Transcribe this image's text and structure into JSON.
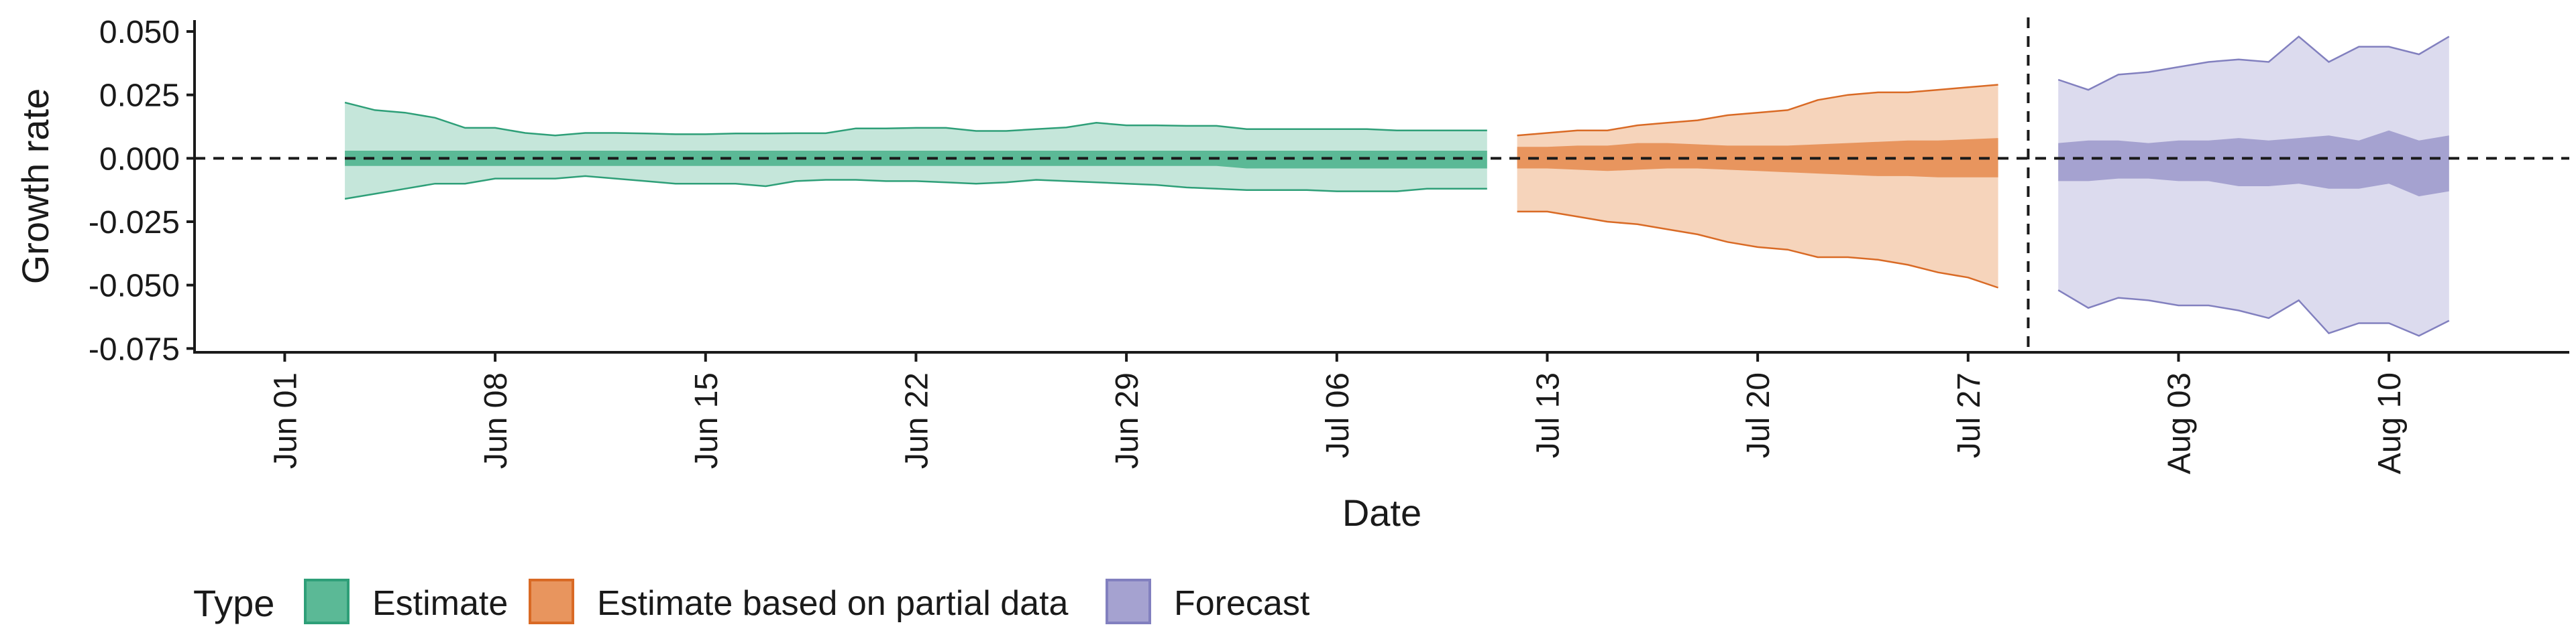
{
  "chart_data": {
    "type": "area",
    "title": "",
    "xlabel": "Date",
    "ylabel": "Growth rate",
    "ylim": [
      -0.075,
      0.05
    ],
    "xlim": [
      "2021-05-29",
      "2021-08-16"
    ],
    "grid": false,
    "legend_position": "bottom-left",
    "y_ticks": [
      "0.050",
      "0.025",
      "0.000",
      "-0.025",
      "-0.050",
      "-0.075"
    ],
    "x_ticks": [
      "Jun 01",
      "Jun 08",
      "Jun 15",
      "Jun 22",
      "Jun 29",
      "Jul 06",
      "Jul 13",
      "Jul 20",
      "Jul 27",
      "Aug 03",
      "Aug 10"
    ],
    "x_tick_dates": [
      "2021-06-01",
      "2021-06-08",
      "2021-06-15",
      "2021-06-22",
      "2021-06-29",
      "2021-07-06",
      "2021-07-13",
      "2021-07-20",
      "2021-07-27",
      "2021-08-03",
      "2021-08-10"
    ],
    "reference_lines": {
      "horizontal_y": 0,
      "vertical_date": "2021-07-29"
    },
    "legend": {
      "title": "Type",
      "entries": [
        "Estimate",
        "Estimate based on partial data",
        "Forecast"
      ]
    },
    "colors": {
      "Estimate": {
        "outer": "#c5e6da",
        "inner": "#5bb996",
        "line": "#2e9f78"
      },
      "Estimate based on partial data": {
        "outer": "#f6d4bb",
        "inner": "#e8955e",
        "line": "#d96a25"
      },
      "Forecast": {
        "outer": "#dcdbee",
        "inner": "#a5a2d0",
        "line": "#8280bf"
      }
    },
    "series": [
      {
        "name": "Estimate",
        "start_date": "2021-06-03",
        "dates_count": 39,
        "upper90": [
          0.022,
          0.019,
          0.018,
          0.016,
          0.012,
          0.012,
          0.01,
          0.009,
          0.01,
          0.01,
          0.0098,
          0.0095,
          0.0095,
          0.0098,
          0.0098,
          0.0099,
          0.0099,
          0.0118,
          0.0118,
          0.012,
          0.012,
          0.0108,
          0.0108,
          0.0115,
          0.0122,
          0.014,
          0.013,
          0.013,
          0.0128,
          0.0128,
          0.0115,
          0.0115,
          0.0115,
          0.0115,
          0.0115,
          0.011,
          0.011,
          0.011,
          0.011
        ],
        "lower90": [
          -0.016,
          -0.014,
          -0.012,
          -0.01,
          -0.01,
          -0.008,
          -0.008,
          -0.008,
          -0.007,
          -0.008,
          -0.009,
          -0.01,
          -0.01,
          -0.01,
          -0.011,
          -0.009,
          -0.0085,
          -0.0085,
          -0.009,
          -0.009,
          -0.0095,
          -0.01,
          -0.0095,
          -0.0085,
          -0.009,
          -0.0095,
          -0.01,
          -0.0105,
          -0.0115,
          -0.012,
          -0.0125,
          -0.0125,
          -0.0125,
          -0.013,
          -0.013,
          -0.013,
          -0.012,
          -0.012,
          -0.012
        ],
        "upper50": [
          0.003,
          0.003,
          0.003,
          0.003,
          0.003,
          0.003,
          0.003,
          0.003,
          0.003,
          0.003,
          0.003,
          0.003,
          0.003,
          0.003,
          0.003,
          0.003,
          0.003,
          0.003,
          0.003,
          0.003,
          0.003,
          0.003,
          0.003,
          0.003,
          0.003,
          0.003,
          0.003,
          0.003,
          0.003,
          0.003,
          0.003,
          0.003,
          0.003,
          0.003,
          0.003,
          0.003,
          0.003,
          0.003,
          0.003
        ],
        "lower50": [
          -0.003,
          -0.003,
          -0.003,
          -0.003,
          -0.003,
          -0.003,
          -0.003,
          -0.003,
          -0.003,
          -0.003,
          -0.003,
          -0.003,
          -0.003,
          -0.003,
          -0.003,
          -0.003,
          -0.003,
          -0.003,
          -0.003,
          -0.003,
          -0.003,
          -0.003,
          -0.003,
          -0.003,
          -0.003,
          -0.003,
          -0.003,
          -0.003,
          -0.003,
          -0.003,
          -0.004,
          -0.004,
          -0.004,
          -0.004,
          -0.004,
          -0.004,
          -0.004,
          -0.004,
          -0.004
        ]
      },
      {
        "name": "Estimate based on partial data",
        "start_date": "2021-07-12",
        "dates_count": 17,
        "upper90": [
          0.009,
          0.01,
          0.011,
          0.011,
          0.013,
          0.014,
          0.015,
          0.017,
          0.018,
          0.019,
          0.023,
          0.025,
          0.026,
          0.026,
          0.027,
          0.028,
          0.029
        ],
        "lower90": [
          -0.021,
          -0.021,
          -0.023,
          -0.025,
          -0.026,
          -0.028,
          -0.03,
          -0.033,
          -0.035,
          -0.036,
          -0.039,
          -0.039,
          -0.04,
          -0.042,
          -0.045,
          -0.047,
          -0.051
        ],
        "upper50": [
          0.0045,
          0.0045,
          0.005,
          0.005,
          0.006,
          0.006,
          0.0055,
          0.005,
          0.005,
          0.005,
          0.0055,
          0.006,
          0.0065,
          0.007,
          0.007,
          0.0075,
          0.008
        ],
        "lower50": [
          -0.004,
          -0.004,
          -0.0045,
          -0.005,
          -0.0045,
          -0.004,
          -0.004,
          -0.0045,
          -0.005,
          -0.0055,
          -0.006,
          -0.0065,
          -0.007,
          -0.007,
          -0.0075,
          -0.0075,
          -0.0075
        ]
      },
      {
        "name": "Forecast",
        "start_date": "2021-07-30",
        "dates_count": 14,
        "upper90": [
          0.031,
          0.027,
          0.033,
          0.034,
          0.036,
          0.038,
          0.039,
          0.038,
          0.048,
          0.038,
          0.044,
          0.044,
          0.041,
          0.048
        ],
        "lower90": [
          -0.052,
          -0.059,
          -0.055,
          -0.056,
          -0.058,
          -0.058,
          -0.06,
          -0.063,
          -0.056,
          -0.069,
          -0.065,
          -0.065,
          -0.07,
          -0.064
        ],
        "upper50": [
          0.006,
          0.007,
          0.007,
          0.006,
          0.007,
          0.007,
          0.008,
          0.007,
          0.008,
          0.009,
          0.007,
          0.011,
          0.007,
          0.009
        ],
        "lower50": [
          -0.009,
          -0.009,
          -0.008,
          -0.008,
          -0.009,
          -0.009,
          -0.011,
          -0.011,
          -0.01,
          -0.012,
          -0.012,
          -0.01,
          -0.015,
          -0.013
        ]
      }
    ]
  }
}
